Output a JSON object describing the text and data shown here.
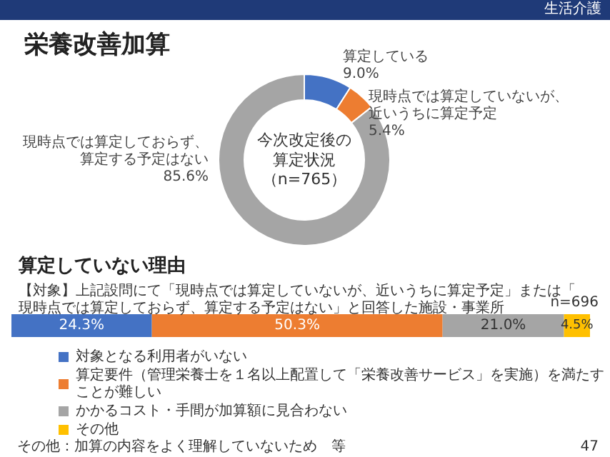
{
  "chart_data": [
    {
      "type": "donut",
      "title": "栄養改善加算",
      "categories": [
        "算定している",
        "現時点では算定していないが、近いうちに算定予定",
        "現時点では算定しておらず、算定する予定はない"
      ],
      "values": [
        9.0,
        5.4,
        85.6
      ],
      "colors": [
        "#4472c4",
        "#ed7d31",
        "#a5a5a5"
      ],
      "value_labels": [
        "9.0%",
        "5.4%",
        "85.6%"
      ],
      "annotations": [
        "生活介護",
        "今次改定後の算定状況",
        "（n=765）"
      ]
    },
    {
      "type": "bar",
      "orientation": "horizontal",
      "stacked": true,
      "title": "算定していない理由",
      "subtitle": "【対象】上記設問にて「現時点では算定していないが、近いうちに算定予定」または「現時点では算定しておらず、算定する予定はない」と回答した施設・事業所",
      "categories": [
        null
      ],
      "legend": "bottom",
      "series": [
        {
          "name": "対象となる利用者がいない",
          "color": "#4472c4",
          "values": [
            24.3
          ],
          "value_labels": [
            "24.3%"
          ]
        },
        {
          "name": "算定要件（管理栄養士を１名以上配置して「栄養改善サービス」を実施）を満たすことが難しい",
          "color": "#ed7d31",
          "values": [
            50.3
          ],
          "value_labels": [
            "50.3%"
          ]
        },
        {
          "name": "かかるコスト・手間が加算額に見合わない",
          "color": "#a5a5a5",
          "values": [
            21.0
          ],
          "value_labels": [
            "21.0%"
          ]
        },
        {
          "name": "その他",
          "color": "#ffc000",
          "values": [
            4.5
          ],
          "value_labels": [
            "4.5%"
          ]
        }
      ],
      "annotations": [
        "n=696",
        "その他：加算の内容をよく理解していないため　等",
        "47"
      ]
    }
  ]
}
